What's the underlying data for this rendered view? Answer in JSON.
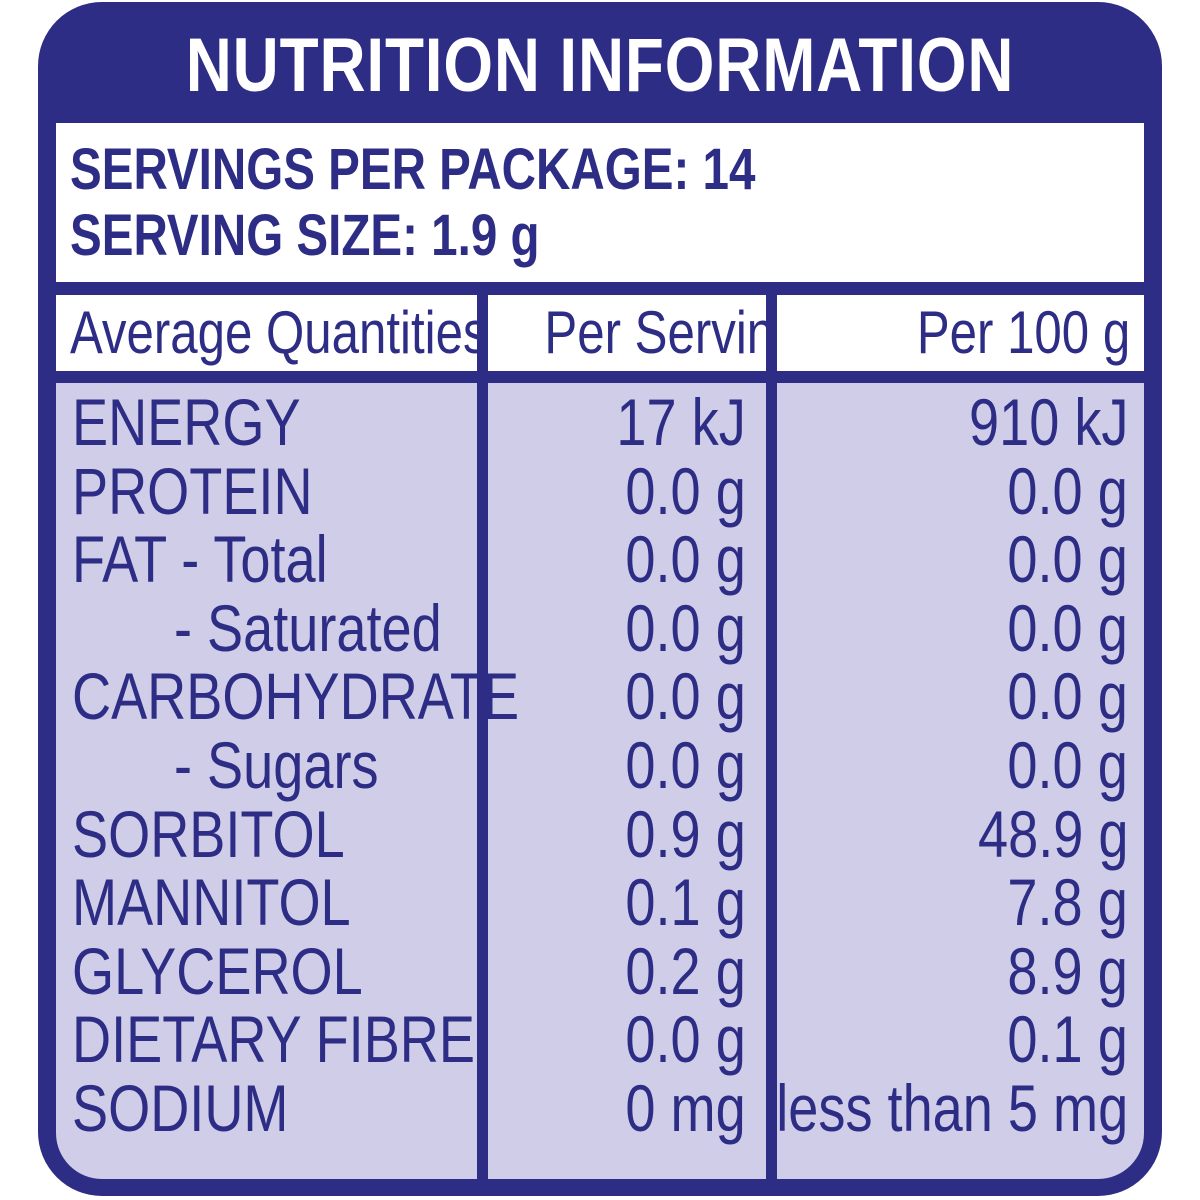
{
  "title": "NUTRITION INFORMATION",
  "servings_per_package": "SERVINGS PER PACKAGE: 14",
  "serving_size": "SERVING SIZE: 1.9 g",
  "headers": {
    "quantities": "Average Quantities",
    "per_serving": "Per Serving",
    "per_100g": "Per 100 g"
  },
  "rows": [
    {
      "name": "ENERGY",
      "per_serving": "17 kJ",
      "per_100g": "910 kJ",
      "indent": false
    },
    {
      "name": "PROTEIN",
      "per_serving": "0.0 g",
      "per_100g": "0.0 g",
      "indent": false
    },
    {
      "name": "FAT - Total",
      "per_serving": "0.0 g",
      "per_100g": "0.0 g",
      "indent": false
    },
    {
      "name": "- Saturated",
      "per_serving": "0.0 g",
      "per_100g": "0.0 g",
      "indent": true
    },
    {
      "name": "CARBOHYDRATE",
      "per_serving": "0.0 g",
      "per_100g": "0.0 g",
      "indent": false
    },
    {
      "name": "- Sugars",
      "per_serving": "0.0 g",
      "per_100g": "0.0 g",
      "indent": true
    },
    {
      "name": "SORBITOL",
      "per_serving": "0.9 g",
      "per_100g": "48.9 g",
      "indent": false
    },
    {
      "name": "MANNITOL",
      "per_serving": "0.1 g",
      "per_100g": "7.8 g",
      "indent": false
    },
    {
      "name": "GLYCEROL",
      "per_serving": "0.2 g",
      "per_100g": "8.9 g",
      "indent": false
    },
    {
      "name": "DIETARY FIBRE",
      "per_serving": "0.0 g",
      "per_100g": "0.1 g",
      "indent": false
    },
    {
      "name": "SODIUM",
      "per_serving": "0 mg",
      "per_100g": "less than 5 mg",
      "indent": false
    }
  ],
  "colors": {
    "border": "#2e2d86",
    "body_fill": "#cfcde7",
    "header_fill": "#ffffff"
  }
}
